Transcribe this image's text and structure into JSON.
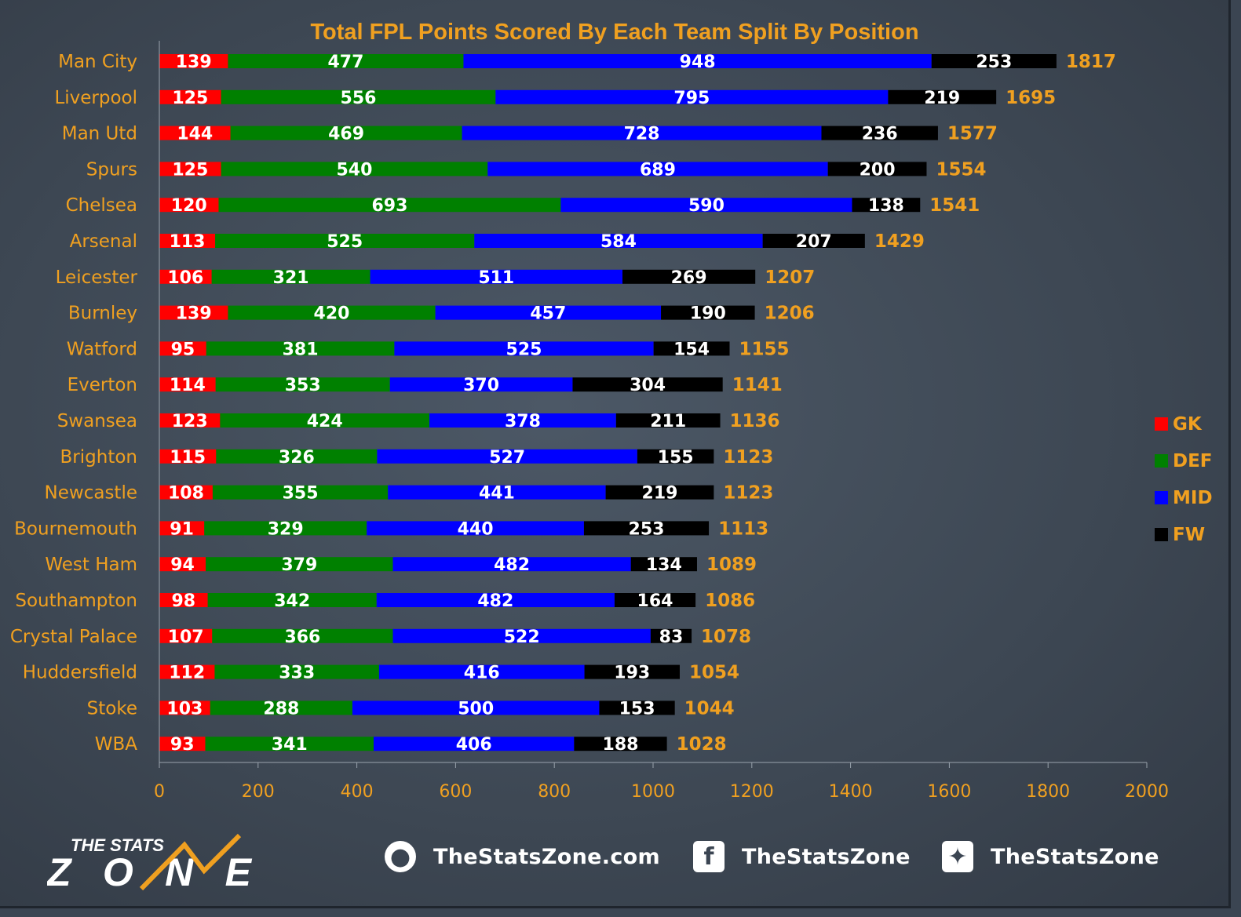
{
  "chart_data": {
    "type": "bar",
    "orientation": "horizontal",
    "stacked": true,
    "title": "Total FPL Points Scored By Each Team Split By Position",
    "categories": [
      "Man City",
      "Liverpool",
      "Man Utd",
      "Spurs",
      "Chelsea",
      "Arsenal",
      "Leicester",
      "Burnley",
      "Watford",
      "Everton",
      "Swansea",
      "Brighton",
      "Newcastle",
      "Bournemouth",
      "West Ham",
      "Southampton",
      "Crystal Palace",
      "Huddersfield",
      "Stoke",
      "WBA"
    ],
    "series": [
      {
        "name": "GK",
        "color": "#ff0000",
        "values": [
          139,
          125,
          144,
          125,
          120,
          113,
          106,
          139,
          95,
          114,
          123,
          115,
          108,
          91,
          94,
          98,
          107,
          112,
          103,
          93
        ]
      },
      {
        "name": "DEF",
        "color": "#008000",
        "values": [
          477,
          556,
          469,
          540,
          693,
          525,
          321,
          420,
          381,
          353,
          424,
          326,
          355,
          329,
          379,
          342,
          366,
          333,
          288,
          341
        ]
      },
      {
        "name": "MID",
        "color": "#0000ff",
        "values": [
          948,
          795,
          728,
          689,
          590,
          584,
          511,
          457,
          525,
          370,
          378,
          527,
          441,
          440,
          482,
          482,
          522,
          416,
          500,
          406
        ]
      },
      {
        "name": "FW",
        "color": "#000000",
        "values": [
          253,
          219,
          236,
          200,
          138,
          207,
          269,
          190,
          154,
          304,
          211,
          155,
          219,
          253,
          134,
          164,
          83,
          193,
          153,
          188
        ]
      }
    ],
    "totals": [
      1817,
      1695,
      1577,
      1554,
      1541,
      1429,
      1207,
      1206,
      1155,
      1141,
      1136,
      1123,
      1123,
      1113,
      1089,
      1086,
      1078,
      1054,
      1044,
      1028
    ],
    "xlim": [
      0,
      2000
    ],
    "xticks": [
      "0",
      "200",
      "400",
      "600",
      "800",
      "1000",
      "1200",
      "1400",
      "1600",
      "1800",
      "2000"
    ],
    "legend_position": "right",
    "grid": false
  },
  "footer": {
    "logo_top": "THE STATS",
    "logo_bottom": "ZONE",
    "website": "TheStatsZone.com",
    "facebook": "TheStatsZone",
    "twitter": "TheStatsZone"
  },
  "colors": {
    "accent": "#f0a020",
    "background": "#3b4552"
  }
}
